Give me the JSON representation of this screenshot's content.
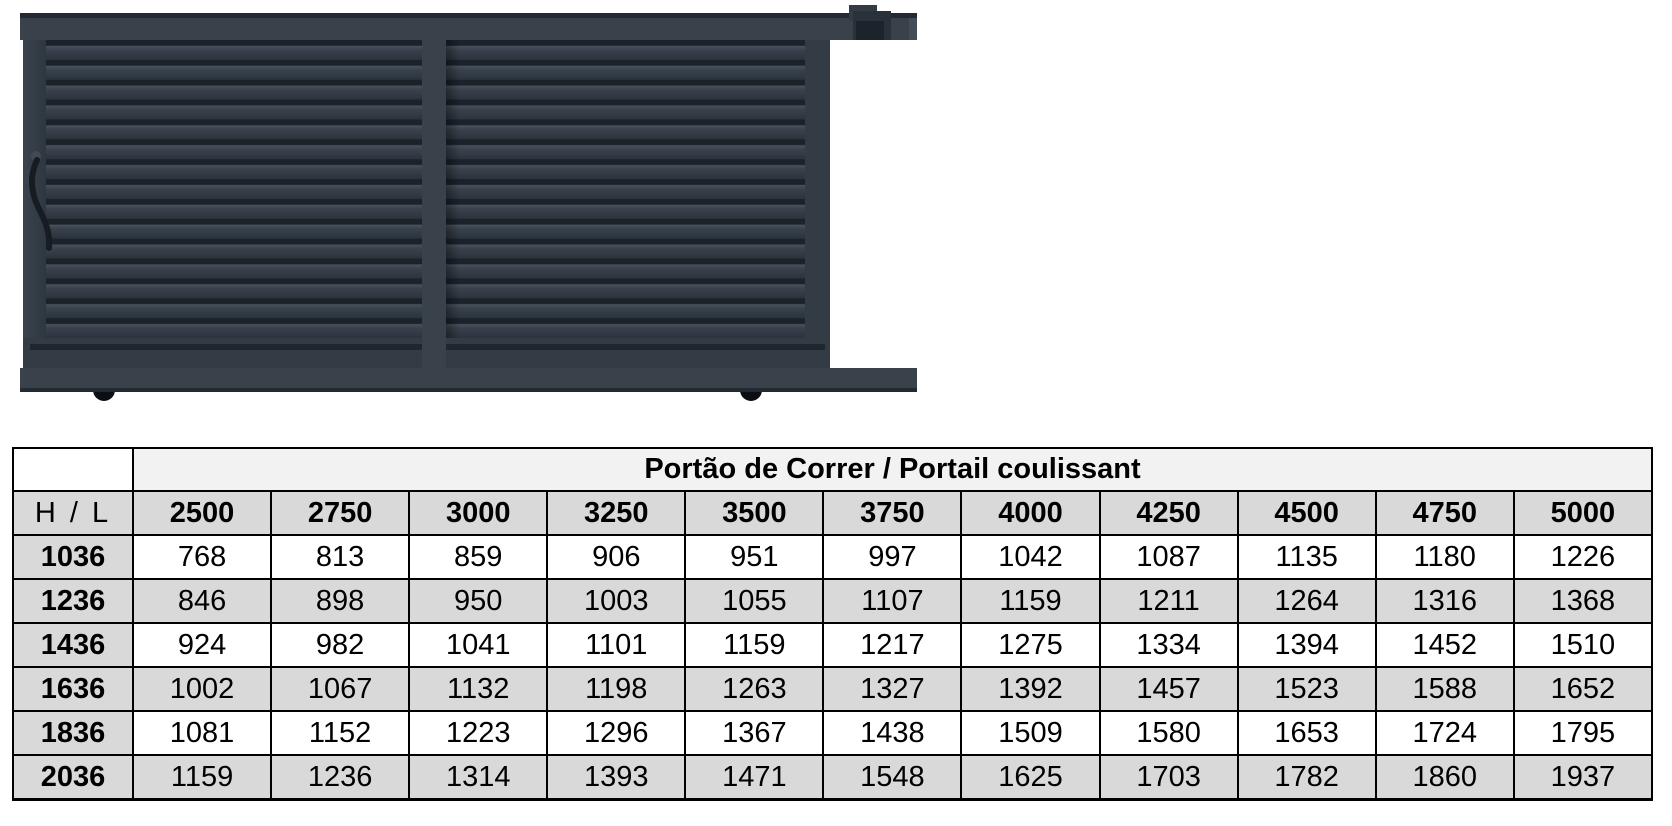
{
  "gate": {
    "label": "sliding-gate-illustration",
    "colors": {
      "anthracite": "#39424b",
      "anthracite_dark": "#232a32",
      "panel_body": "#333c45",
      "slat_gap": "#1b222a",
      "groove": "#1f262e",
      "block_dark": "#29313a",
      "bracket_front": "#1c232b",
      "wheel_black": "#0b0f13",
      "handle_black": "#161c22",
      "handle_knob": "#424b54"
    }
  },
  "table": {
    "title": "Portão de Correr / Portail coulissant",
    "corner_label": "H / L",
    "col_headers": [
      "2500",
      "2750",
      "3000",
      "3250",
      "3500",
      "3750",
      "4000",
      "4250",
      "4500",
      "4750",
      "5000"
    ],
    "rows": [
      {
        "h": "1036",
        "values": [
          "768",
          "813",
          "859",
          "906",
          "951",
          "997",
          "1042",
          "1087",
          "1135",
          "1180",
          "1226"
        ]
      },
      {
        "h": "1236",
        "values": [
          "846",
          "898",
          "950",
          "1003",
          "1055",
          "1107",
          "1159",
          "1211",
          "1264",
          "1316",
          "1368"
        ]
      },
      {
        "h": "1436",
        "values": [
          "924",
          "982",
          "1041",
          "1101",
          "1159",
          "1217",
          "1275",
          "1334",
          "1394",
          "1452",
          "1510"
        ]
      },
      {
        "h": "1636",
        "values": [
          "1002",
          "1067",
          "1132",
          "1198",
          "1263",
          "1327",
          "1392",
          "1457",
          "1523",
          "1588",
          "1652"
        ]
      },
      {
        "h": "1836",
        "values": [
          "1081",
          "1152",
          "1223",
          "1296",
          "1367",
          "1438",
          "1509",
          "1580",
          "1653",
          "1724",
          "1795"
        ]
      },
      {
        "h": "2036",
        "values": [
          "1159",
          "1236",
          "1314",
          "1393",
          "1471",
          "1548",
          "1625",
          "1703",
          "1782",
          "1860",
          "1937"
        ]
      }
    ],
    "colors": {
      "title_bg": "#f2f2f2",
      "gray_bg": "#d9d9d9",
      "border": "#000000"
    }
  }
}
